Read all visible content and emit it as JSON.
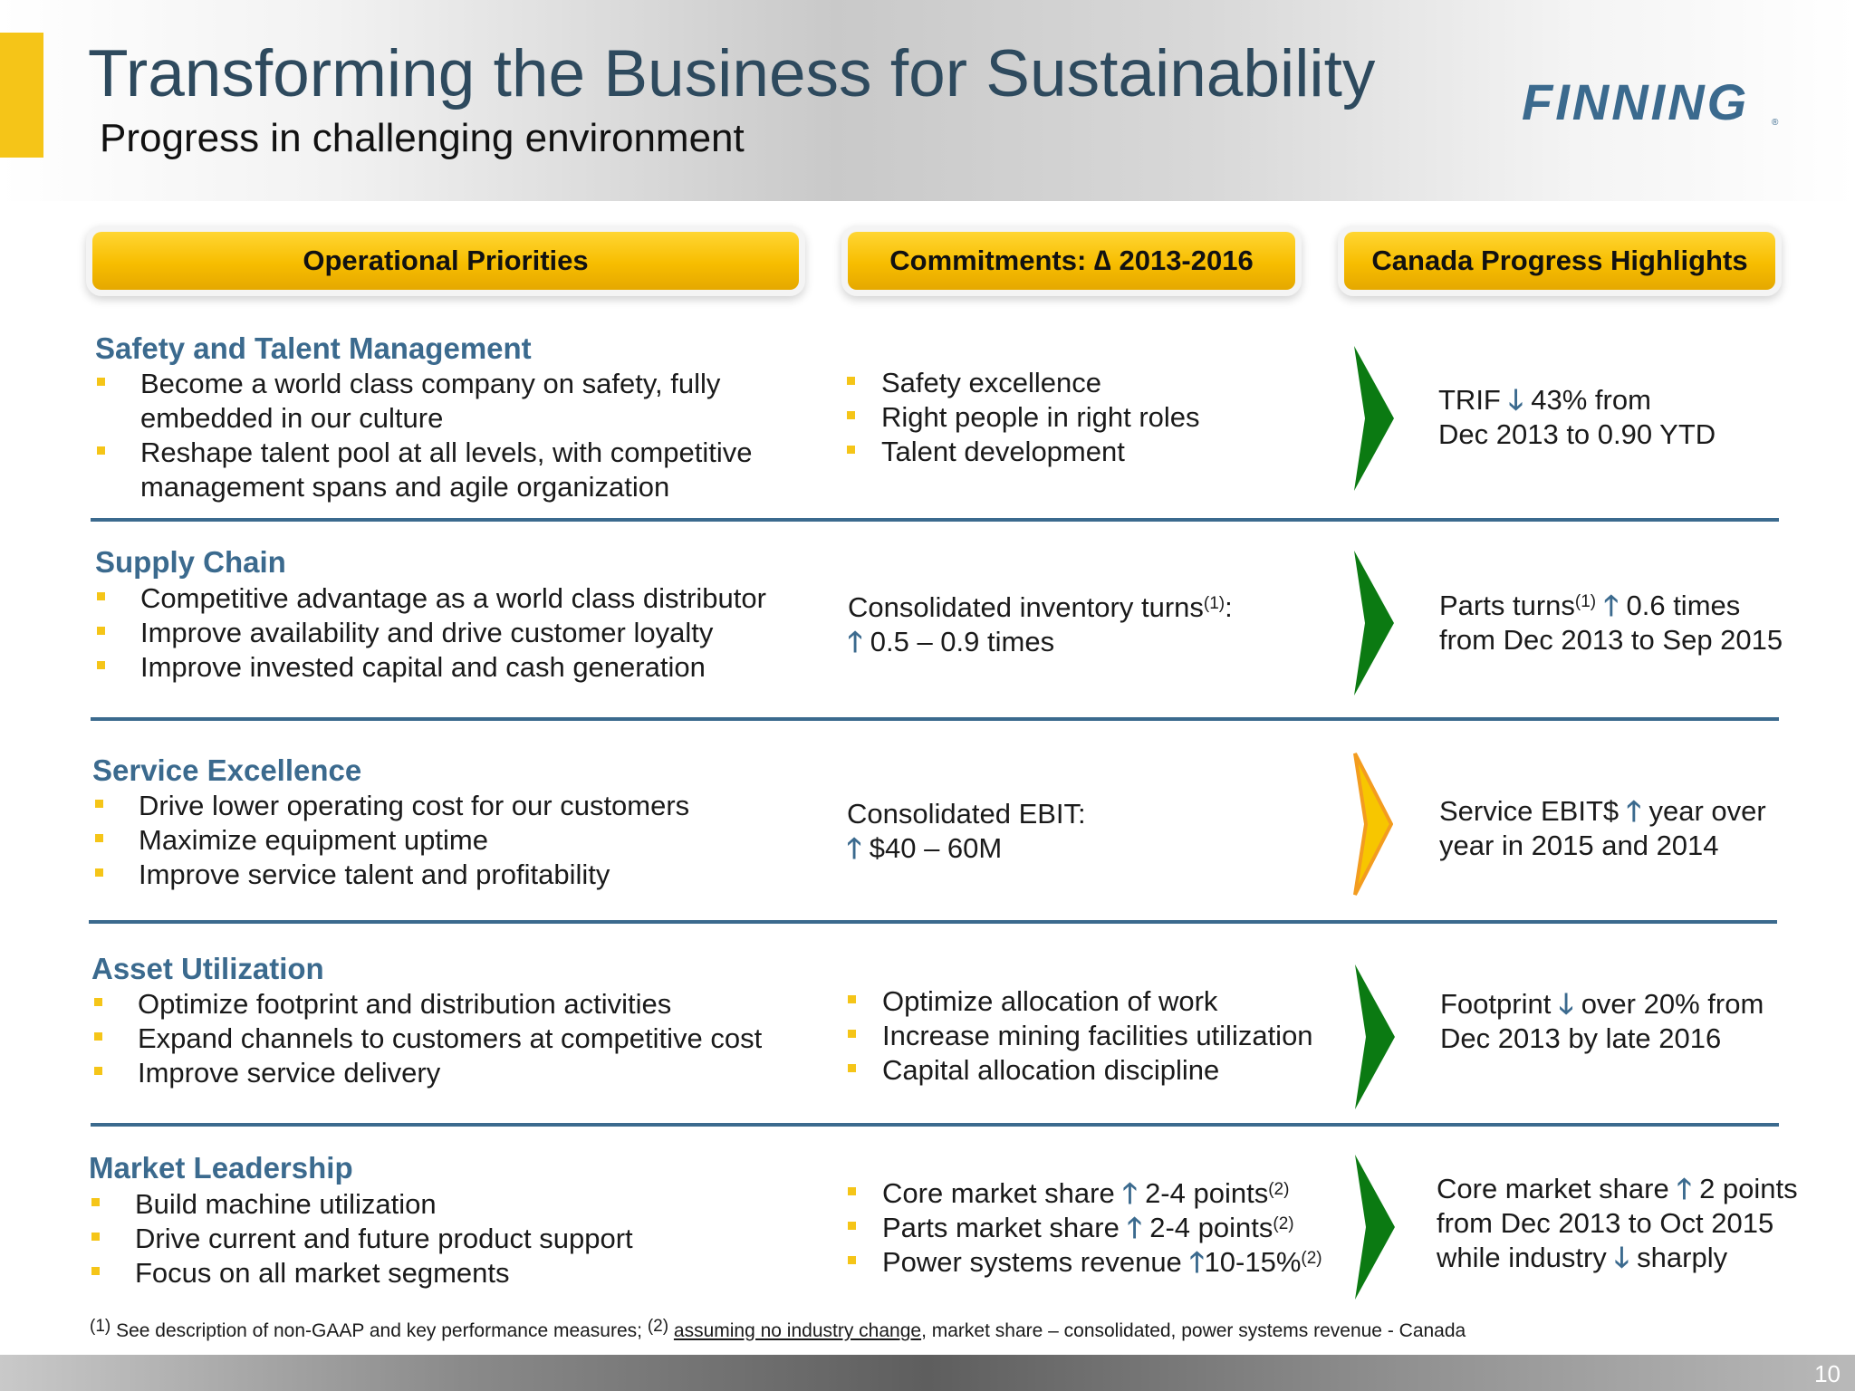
{
  "header": {
    "title": "Transforming the Business for Sustainability",
    "subtitle": "Progress in challenging environment",
    "logo_text": "FINNING"
  },
  "columns": {
    "priorities": "Operational Priorities",
    "commitments": "Commitments: ∆ 2013-2016",
    "highlights": "Canada Progress Highlights"
  },
  "rows": [
    {
      "title": "Safety and Talent Management",
      "priorities": [
        "Become a world class company on safety, fully embedded in our culture",
        "Reshape talent pool at all levels, with competitive management spans and agile organization"
      ],
      "commitments": [
        "Safety excellence",
        "Right people in right roles",
        "Talent development"
      ],
      "highlight": {
        "a": "TRIF ",
        "arrow": "🡓",
        "b": " 43% from",
        "c": "Dec 2013 to 0.90 YTD"
      },
      "chevron_color": "green"
    },
    {
      "title": "Supply Chain",
      "priorities": [
        "Competitive advantage as a world class distributor",
        "Improve availability and drive customer loyalty",
        "Improve invested capital and cash generation"
      ],
      "commitment_text": {
        "a": "Consolidated inventory turns",
        "sup": "(1)",
        "b": ":",
        "arrow": "🡑",
        "c": " 0.5 – 0.9 times"
      },
      "highlight": {
        "a": "Parts turns",
        "sup": "(1)",
        "arrow": "🡑",
        "b": " 0.6 times",
        "c": "from Dec 2013 to Sep 2015"
      },
      "chevron_color": "green"
    },
    {
      "title": "Service Excellence",
      "priorities": [
        "Drive lower operating cost for our customers",
        "Maximize equipment uptime",
        "Improve service talent and profitability"
      ],
      "commitment_text": {
        "a": "Consolidated EBIT:",
        "arrow": "🡑",
        "c": " $40 – 60M"
      },
      "highlight": {
        "a": "Service EBIT$ ",
        "arrow": "🡑",
        "b": " year over",
        "c": "year in 2015 and 2014"
      },
      "chevron_color": "amber"
    },
    {
      "title": "Asset Utilization",
      "priorities": [
        "Optimize footprint and distribution activities",
        "Expand channels to customers at competitive cost",
        "Improve service delivery"
      ],
      "commitments": [
        "Optimize allocation of work",
        "Increase mining facilities utilization",
        "Capital allocation discipline"
      ],
      "highlight": {
        "a": "Footprint ",
        "arrow": "🡓",
        "b": " over 20% from",
        "c": "Dec 2013 by late 2016"
      },
      "chevron_color": "green"
    },
    {
      "title": "Market Leadership",
      "priorities": [
        "Build machine utilization",
        "Drive current and future product support",
        "Focus on all market segments"
      ],
      "commitments_rich": [
        {
          "a": "Core market share ",
          "arrow": "🡑",
          "b": " 2-4 points",
          "sup": "(2)"
        },
        {
          "a": "Parts market share ",
          "arrow": "🡑",
          "b": " 2-4 points",
          "sup": "(2)"
        },
        {
          "a": "Power systems revenue ",
          "arrow": "🡑",
          "b": "10-15%",
          "sup": "(2)"
        }
      ],
      "highlight": {
        "a": "Core market share ",
        "arrow": "🡑",
        "b": " 2 points",
        "c": "from Dec 2013 to Oct 2015",
        "d": "while industry ",
        "arrow2": "🡓",
        "e": " sharply"
      },
      "chevron_color": "green"
    }
  ],
  "footnote": {
    "sup1": "(1)",
    "a": " See description of non-GAAP and key performance measures; ",
    "sup2": "(2)",
    "u": "assuming no industry change",
    "b": ", market share – consolidated, power systems revenue - Canada"
  },
  "page_number": "10",
  "colors": {
    "accent": "#f5c518",
    "blue": "#3b6a8e",
    "green": "#0b7a12",
    "amber": "#f7b500"
  }
}
